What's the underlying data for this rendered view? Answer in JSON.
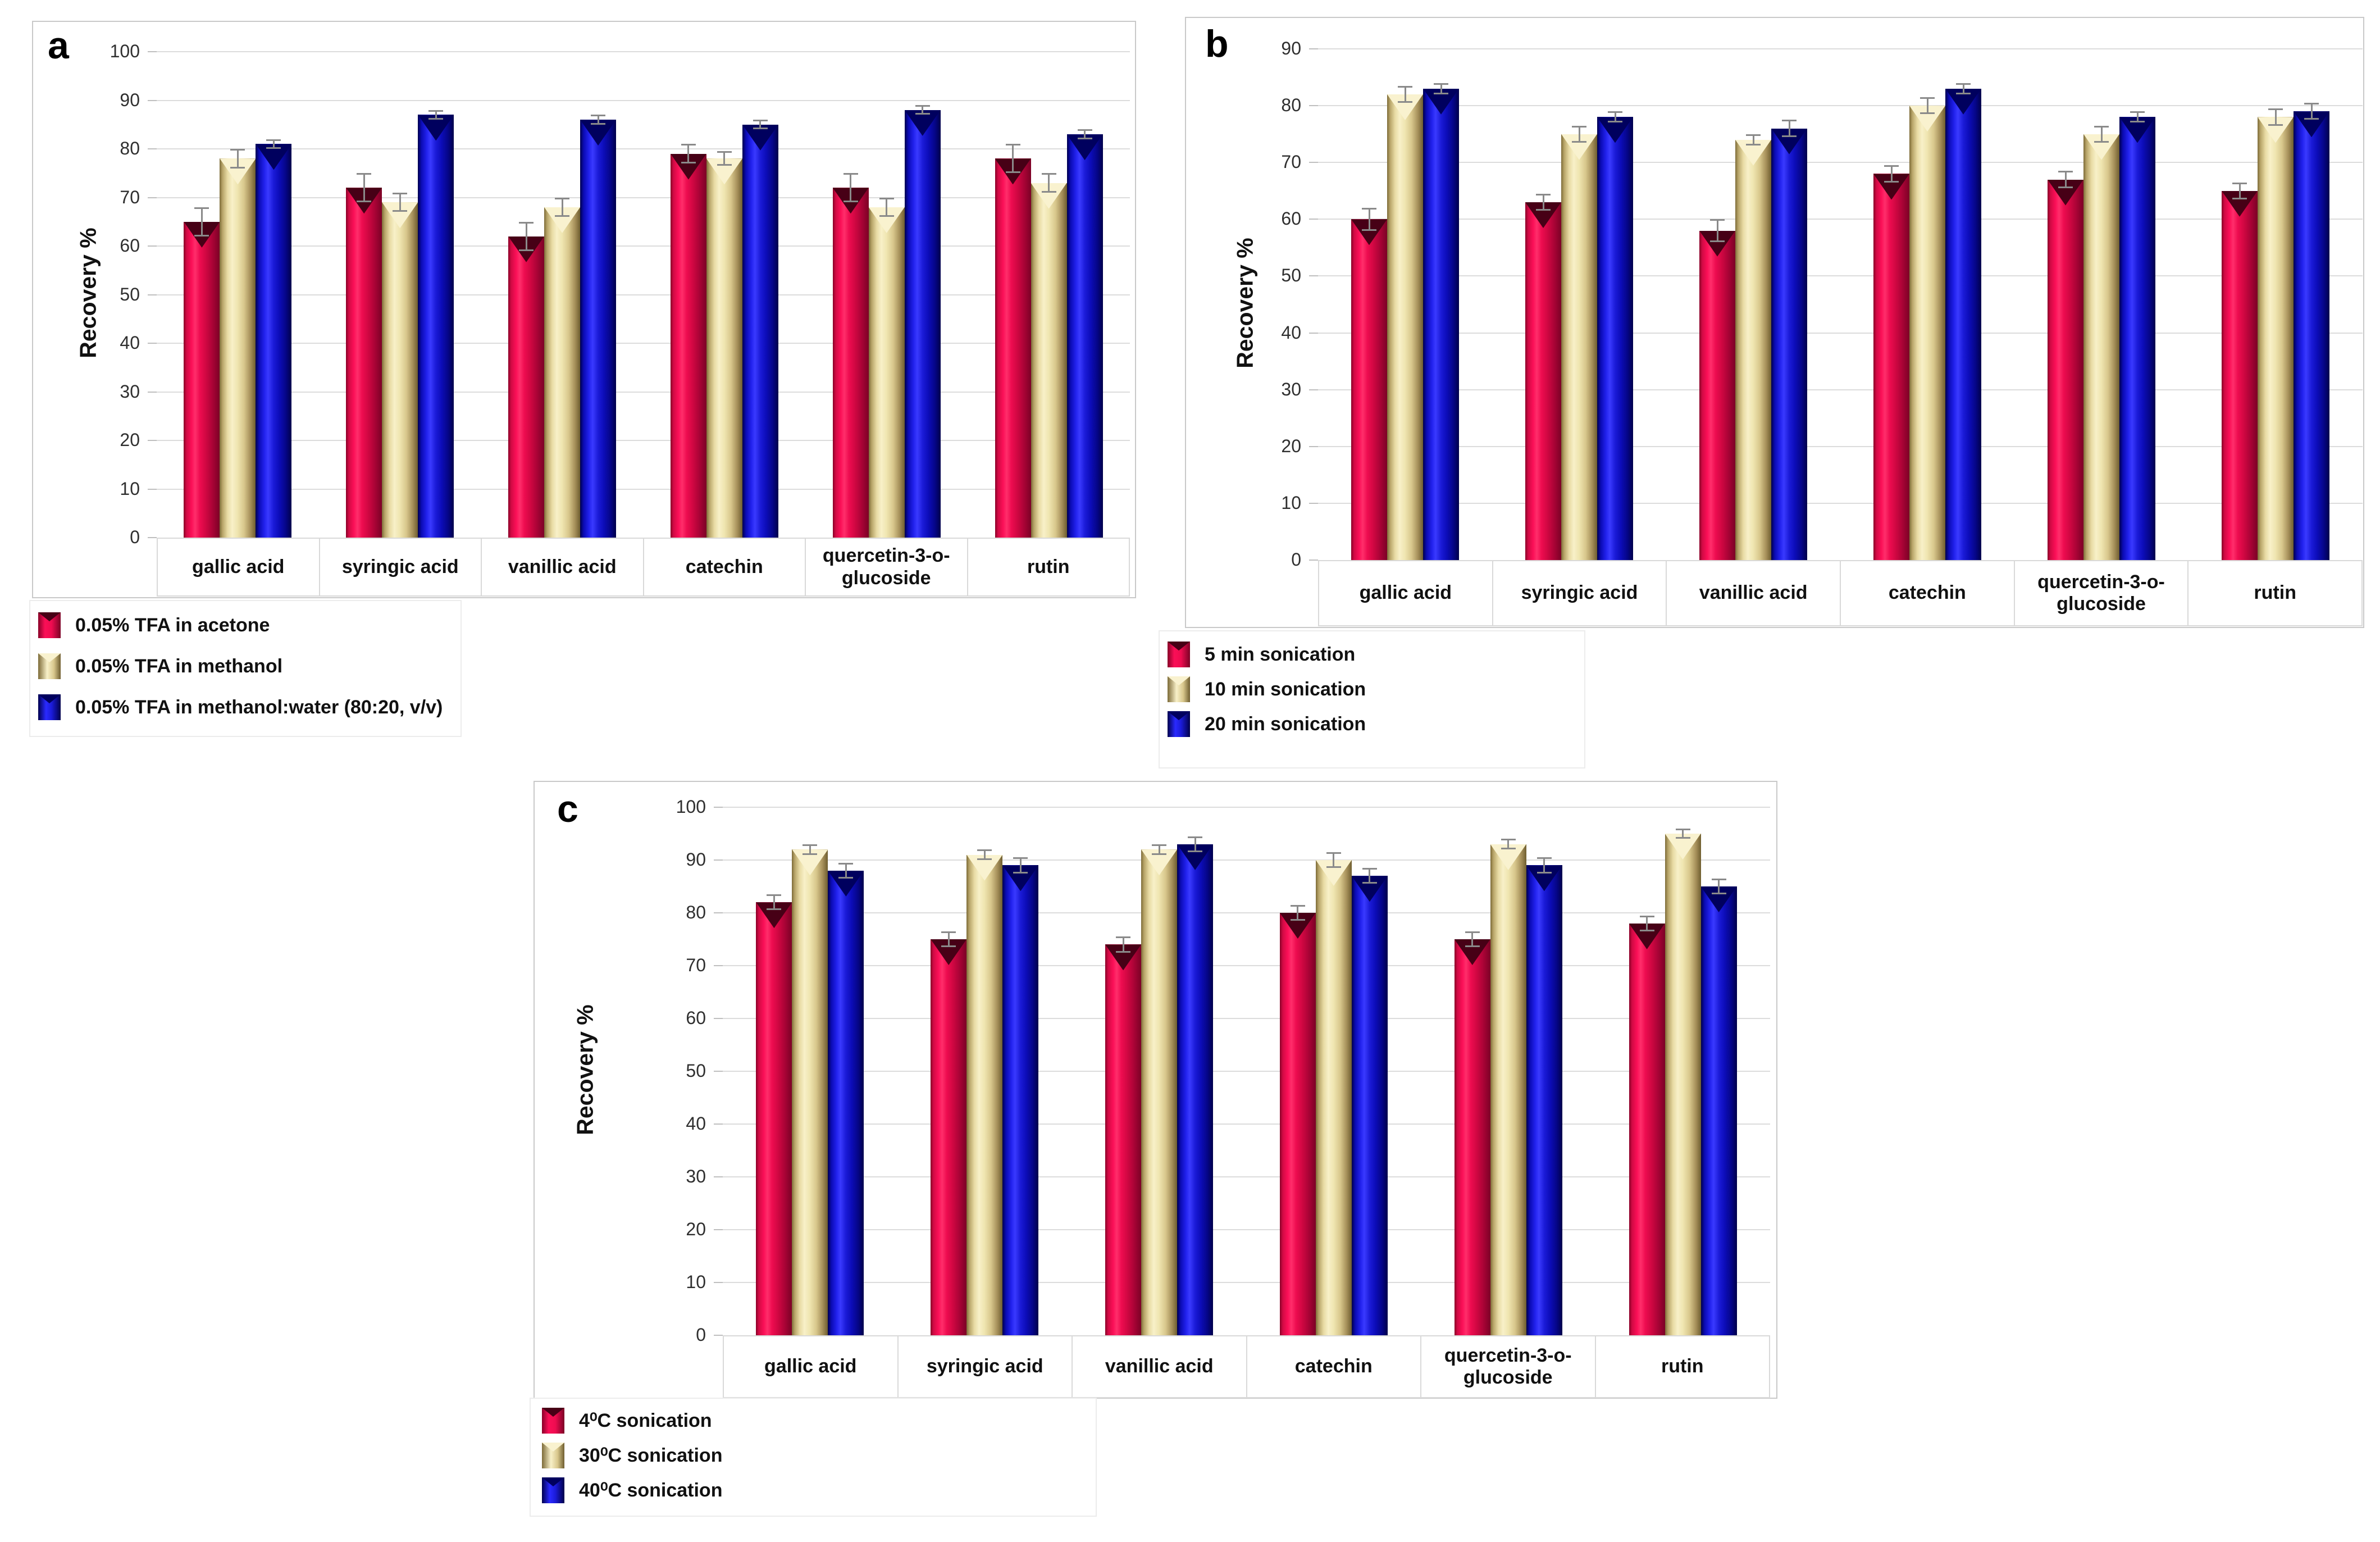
{
  "figure": {
    "description": "Three-panel grouped 3D bar chart figure of extraction recovery percentages",
    "panels": [
      "a",
      "b",
      "c"
    ]
  },
  "colors": {
    "series_red": "#ee0c50",
    "series_tan": "#efe5b0",
    "series_blue": "#1b1bd8",
    "cap_red": "#470016",
    "cap_tan": "#f9f2cf",
    "cap_blue": "#00005e",
    "gridline": "#dcdcdc",
    "error_bar": "#8a8a8a",
    "panel_border": "#c9c9c9",
    "category_box_border": "#d9d9d9",
    "text": "#111111"
  },
  "chart_data": [
    {
      "type": "bar",
      "panel_label": "a",
      "ylabel": "Recovery %",
      "ylim": [
        0,
        100
      ],
      "ytick_step": 10,
      "grid": true,
      "legend_position": "below-left",
      "categories": [
        "gallic acid",
        "syringic acid",
        "vanillic acid",
        "catechin",
        "quercetin-3-o-glucoside",
        "rutin"
      ],
      "series": [
        {
          "name": "0.05% TFA in acetone",
          "color": "red",
          "values": [
            65,
            72,
            62,
            79,
            72,
            78
          ],
          "errors": [
            3,
            3,
            3,
            2,
            3,
            3
          ]
        },
        {
          "name": "0.05% TFA in methanol",
          "color": "tan",
          "values": [
            78,
            69,
            68,
            78,
            68,
            73
          ],
          "errors": [
            2,
            2,
            2,
            1.5,
            2,
            2
          ]
        },
        {
          "name": "0.05% TFA in methanol:water (80:20, v/v)",
          "color": "blue",
          "values": [
            81,
            87,
            86,
            85,
            88,
            83
          ],
          "errors": [
            1,
            1,
            1,
            1,
            1,
            1
          ]
        }
      ]
    },
    {
      "type": "bar",
      "panel_label": "b",
      "ylabel": "Recovery %",
      "ylim": [
        0,
        90
      ],
      "ytick_step": 10,
      "grid": true,
      "legend_position": "below-left",
      "categories": [
        "gallic acid",
        "syringic acid",
        "vanillic acid",
        "catechin",
        "quercetin-3-o-glucoside",
        "rutin"
      ],
      "series": [
        {
          "name": "5 min sonication",
          "color": "red",
          "values": [
            60,
            63,
            58,
            68,
            67,
            65
          ],
          "errors": [
            2,
            1.5,
            2,
            1.5,
            1.5,
            1.5
          ]
        },
        {
          "name": "10 min sonication",
          "color": "tan",
          "values": [
            82,
            75,
            74,
            80,
            75,
            78
          ],
          "errors": [
            1.5,
            1.5,
            1,
            1.5,
            1.5,
            1.5
          ]
        },
        {
          "name": "20 min sonication",
          "color": "blue",
          "values": [
            83,
            78,
            76,
            83,
            78,
            79
          ],
          "errors": [
            1,
            1,
            1.5,
            1,
            1,
            1.5
          ]
        }
      ]
    },
    {
      "type": "bar",
      "panel_label": "c",
      "ylabel": "Recovery %",
      "ylim": [
        0,
        100
      ],
      "ytick_step": 10,
      "grid": true,
      "legend_position": "below-left",
      "categories": [
        "gallic acid",
        "syringic acid",
        "vanillic acid",
        "catechin",
        "quercetin-3-o-glucoside",
        "rutin"
      ],
      "series": [
        {
          "name": "4⁰C sonication",
          "color": "red",
          "values": [
            82,
            75,
            74,
            80,
            75,
            78
          ],
          "errors": [
            1.5,
            1.5,
            1.5,
            1.5,
            1.5,
            1.5
          ]
        },
        {
          "name": "30⁰C sonication",
          "color": "tan",
          "values": [
            92,
            91,
            92,
            90,
            93,
            95
          ],
          "errors": [
            1,
            1,
            1,
            1.5,
            1,
            1
          ]
        },
        {
          "name": "40⁰C sonication",
          "color": "blue",
          "values": [
            88,
            89,
            93,
            87,
            89,
            85
          ],
          "errors": [
            1.5,
            1.5,
            1.5,
            1.5,
            1.5,
            1.5
          ]
        }
      ]
    }
  ]
}
